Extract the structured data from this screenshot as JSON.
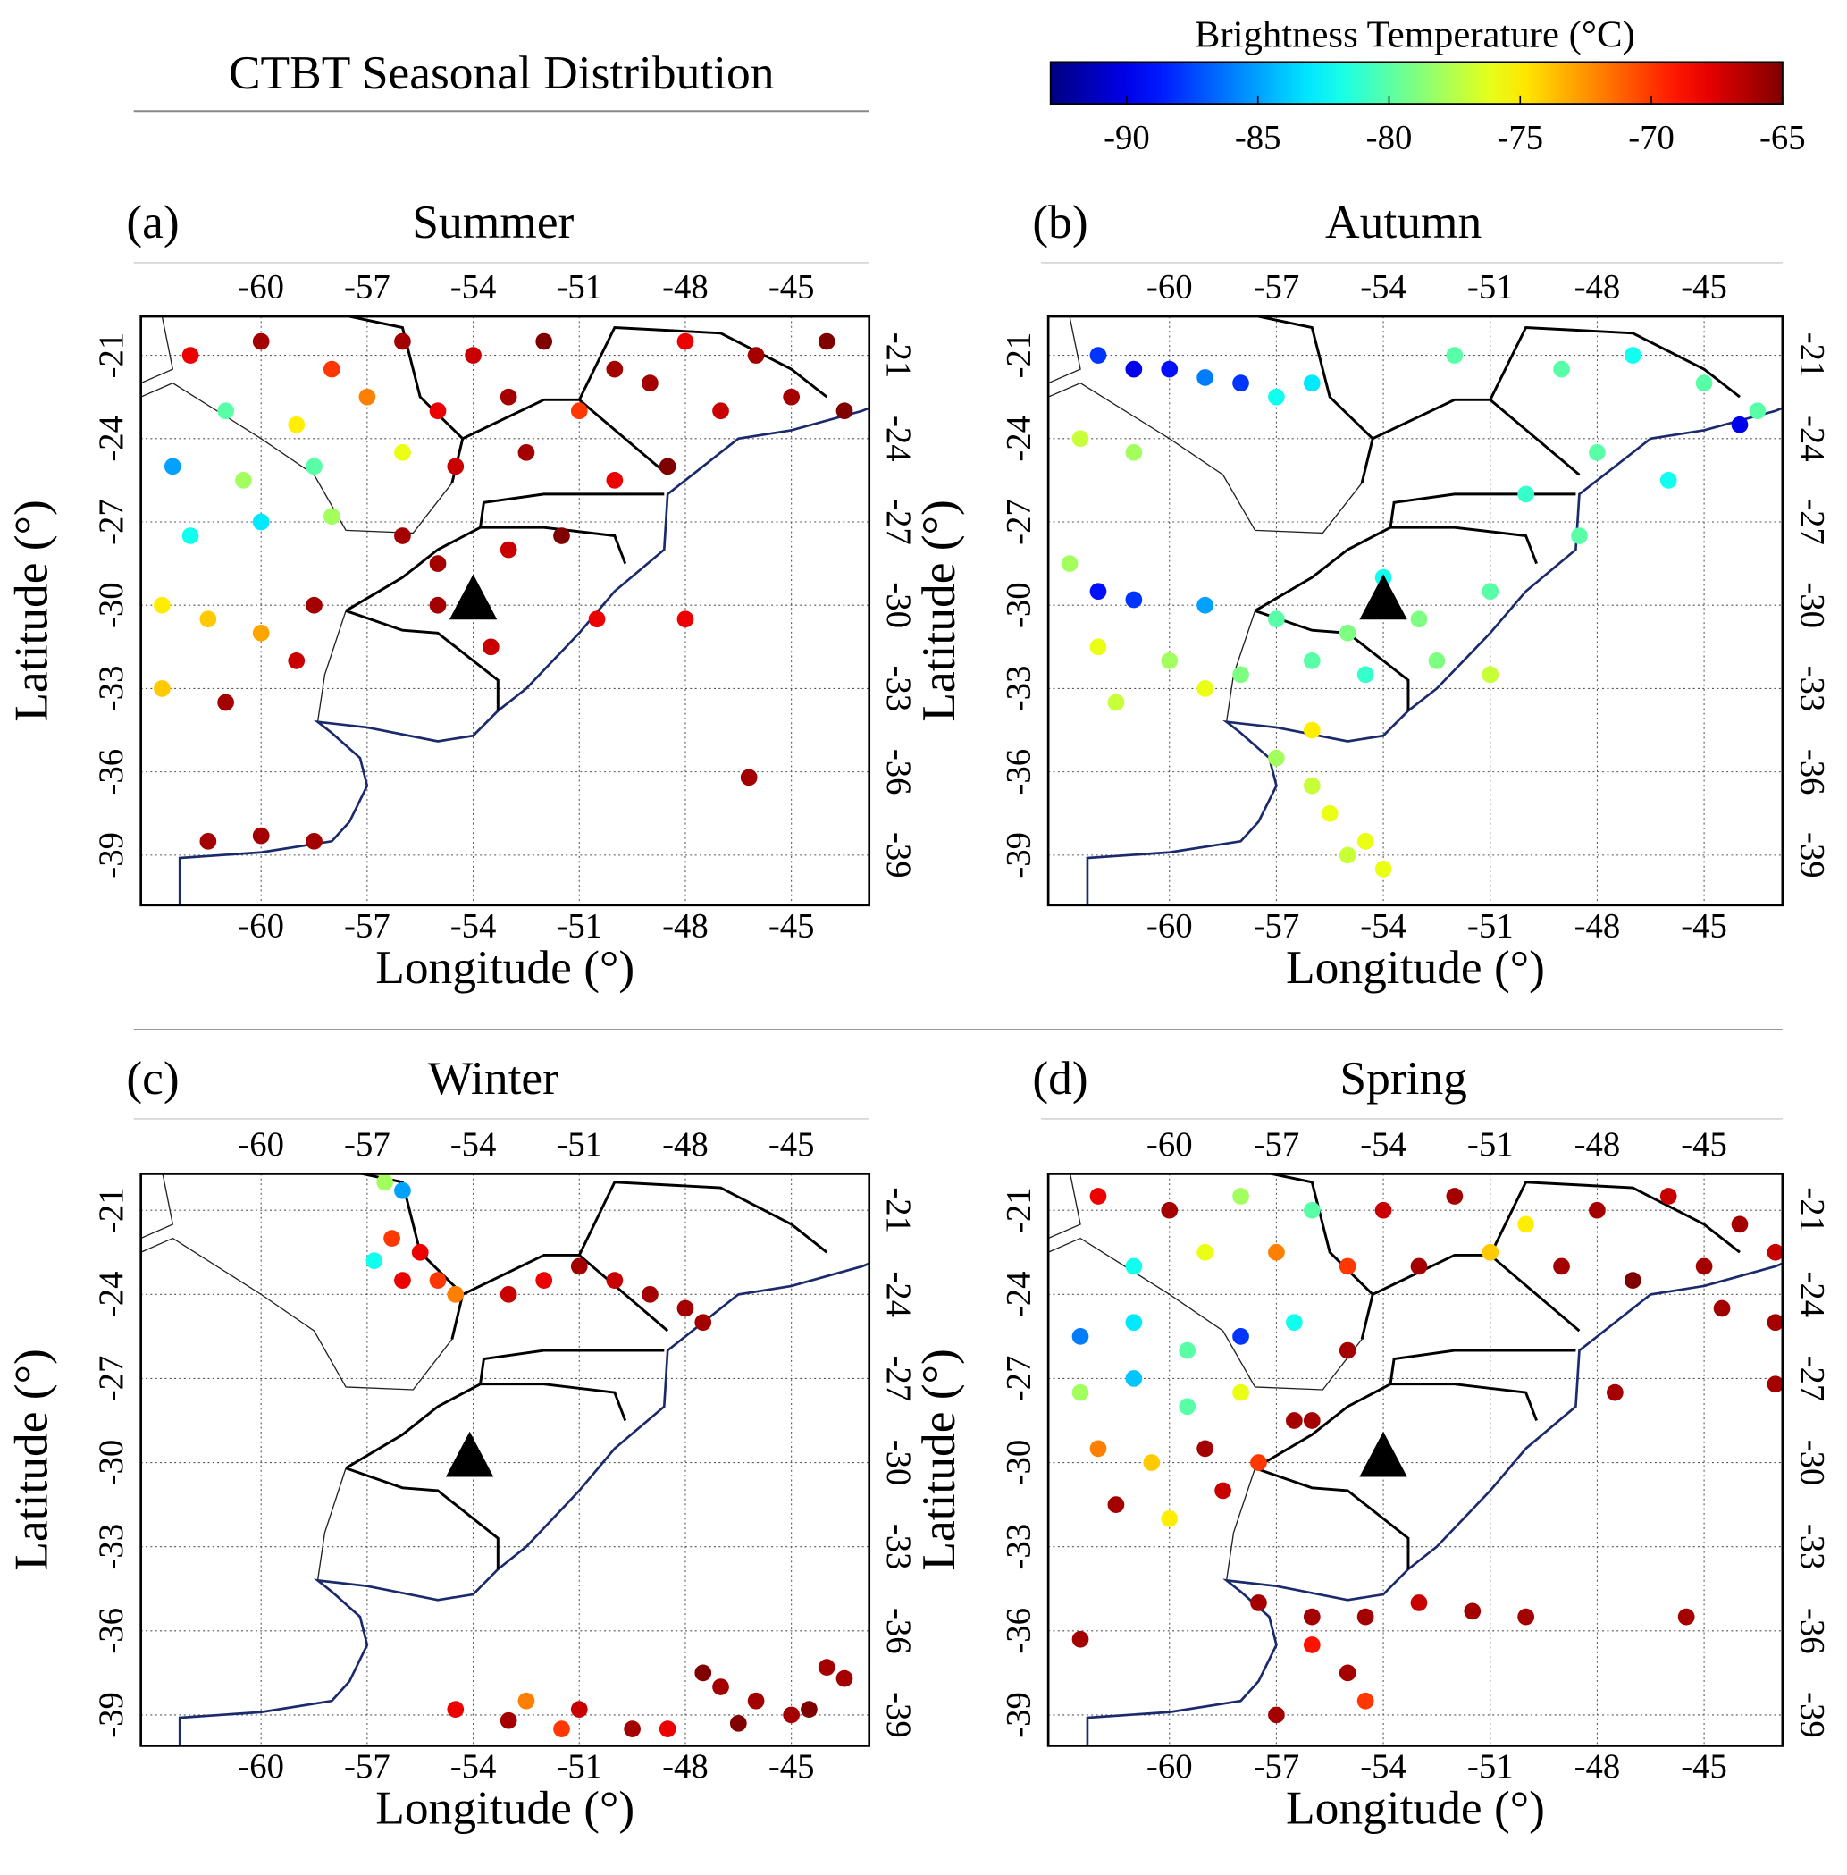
{
  "title": "CTBT Seasonal Distribution",
  "colorbar": {
    "label": "Brightness Temperature (°C)",
    "colormap": "jet",
    "lim": [
      -92.9,
      -65
    ],
    "ticks": [
      -90,
      -85,
      -80,
      -75,
      -70,
      -65
    ]
  },
  "chart_data": [
    {
      "type": "scatter",
      "panel_label": "(a)",
      "title": "Summer",
      "xlabel": "Longitude (°)",
      "ylabel": "Latitude (°)",
      "xlim": [
        -63.4,
        -42.8
      ],
      "ylim": [
        -40.8,
        -19.6
      ],
      "xticks": [
        -60,
        -57,
        -54,
        -51,
        -48,
        -45
      ],
      "yticks": [
        -21,
        -24,
        -27,
        -30,
        -33,
        -36,
        -39
      ],
      "grid": true,
      "x": [
        -62,
        -60,
        -58,
        -56,
        -54,
        -52,
        -50,
        -48,
        -46,
        -44,
        -61,
        -59,
        -57,
        -55,
        -53,
        -51,
        -49,
        -47,
        -45,
        -43.5,
        -62.5,
        -60.5,
        -58.5,
        -56,
        -54.5,
        -52.5,
        -50,
        -48.5,
        -62,
        -60,
        -58,
        -56,
        -55,
        -53,
        -51.5,
        -62.8,
        -61.5,
        -60,
        -58.5,
        -55,
        -53.5,
        -50.5,
        -48,
        -62.8,
        -61,
        -59,
        -61.5,
        -60,
        -58.5,
        -46.2
      ],
      "y": [
        -21,
        -20.5,
        -21.5,
        -20.5,
        -21,
        -20.5,
        -21.5,
        -20.5,
        -21,
        -20.5,
        -23,
        -23.5,
        -22.5,
        -23,
        -22.5,
        -23,
        -22,
        -23,
        -22.5,
        -23,
        -25,
        -25.5,
        -25,
        -24.5,
        -25,
        -24.5,
        -25.5,
        -25,
        -27.5,
        -27,
        -26.8,
        -27.5,
        -28.5,
        -28,
        -27.5,
        -30,
        -30.5,
        -31,
        -30,
        -30,
        -31.5,
        -30.5,
        -30.5,
        -33,
        -33.5,
        -32,
        -38.5,
        -38.3,
        -38.5,
        -36.2
      ],
      "values": [
        -68,
        -66,
        -70,
        -66,
        -67,
        -65,
        -66,
        -68,
        -66,
        -65,
        -80,
        -75,
        -72,
        -68,
        -66,
        -70,
        -66,
        -67,
        -66,
        -65,
        -85,
        -78,
        -80,
        -76,
        -67,
        -66,
        -68,
        -65,
        -82,
        -83,
        -78,
        -66,
        -66,
        -67,
        -65,
        -75,
        -74,
        -73,
        -66,
        -66,
        -67,
        -68,
        -68,
        -74,
        -66,
        -67,
        -66,
        -66,
        -66,
        -66
      ],
      "markers": {
        "x": [
          -54
        ],
        "y": [
          -29.7
        ]
      }
    },
    {
      "type": "scatter",
      "panel_label": "(b)",
      "title": "Autumn",
      "xlabel": "Longitude (°)",
      "ylabel": "Latitude (°)",
      "xlim": [
        -63.4,
        -42.8
      ],
      "ylim": [
        -40.8,
        -19.6
      ],
      "xticks": [
        -60,
        -57,
        -54,
        -51,
        -48,
        -45
      ],
      "yticks": [
        -21,
        -24,
        -27,
        -30,
        -33,
        -36,
        -39
      ],
      "grid": true,
      "x": [
        -62,
        -61,
        -60,
        -59,
        -58,
        -56,
        -52,
        -49,
        -47,
        -45,
        -43.5,
        -62.5,
        -61,
        -57,
        -48,
        -46,
        -44,
        -62.8,
        -62,
        -61,
        -59,
        -57,
        -55,
        -54,
        -53,
        -51,
        -62,
        -60,
        -58,
        -56,
        -54.5,
        -52.5,
        -51,
        -61.5,
        -59,
        -56,
        -57,
        -56,
        -55.5,
        -54.5,
        -55,
        -54,
        -48.5,
        -50
      ],
      "y": [
        -21,
        -21.5,
        -21.5,
        -21.8,
        -22,
        -22,
        -21,
        -21.5,
        -21,
        -22,
        -23,
        -24,
        -24.5,
        -22.5,
        -24.5,
        -25.5,
        -23.5,
        -28.5,
        -29.5,
        -29.8,
        -30,
        -30.5,
        -31,
        -29,
        -30.5,
        -29.5,
        -31.5,
        -32,
        -32.5,
        -32,
        -32.5,
        -32,
        -32.5,
        -33.5,
        -33,
        -34.5,
        -35.5,
        -36.5,
        -37.5,
        -38.5,
        -39,
        -39.5,
        -27.5,
        -26
      ],
      "values": [
        -88,
        -90,
        -89,
        -86,
        -88,
        -83,
        -80,
        -80,
        -82,
        -80,
        -80,
        -77,
        -78,
        -82,
        -80,
        -82,
        -90,
        -78,
        -89,
        -88,
        -85,
        -80,
        -79,
        -82,
        -79,
        -80,
        -76,
        -78,
        -79,
        -80,
        -81,
        -79,
        -77,
        -77,
        -76,
        -75,
        -78,
        -77,
        -76,
        -76,
        -77,
        -76,
        -80,
        -81
      ],
      "markers": {
        "x": [
          -54
        ],
        "y": [
          -29.7
        ]
      }
    },
    {
      "type": "scatter",
      "panel_label": "(c)",
      "title": "Winter",
      "xlabel": "Longitude (°)",
      "ylabel": "Latitude (°)",
      "xlim": [
        -63.4,
        -42.8
      ],
      "ylim": [
        -40.1,
        -19.7
      ],
      "xticks": [
        -60,
        -57,
        -54,
        -51,
        -48,
        -45
      ],
      "yticks": [
        -21,
        -24,
        -27,
        -30,
        -33,
        -36,
        -39
      ],
      "grid": true,
      "x": [
        -56.5,
        -56,
        -56.3,
        -55.5,
        -56.8,
        -56,
        -55,
        -54.5,
        -53,
        -52,
        -51,
        -50,
        -49,
        -48,
        -47.5,
        -54.5,
        -53,
        -52.5,
        -51.5,
        -51,
        -49.5,
        -48.5,
        -47.5,
        -47,
        -46,
        -45,
        -44.5,
        -44,
        -43.5,
        -46.5
      ],
      "y": [
        -20,
        -20.3,
        -22,
        -22.5,
        -22.8,
        -23.5,
        -23.5,
        -24,
        -24,
        -23.5,
        -23,
        -23.5,
        -24,
        -24.5,
        -25,
        -38.8,
        -39.2,
        -38.5,
        -39.5,
        -38.8,
        -39.5,
        -39.5,
        -37.5,
        -38,
        -38.5,
        -39,
        -38.8,
        -37.3,
        -37.7,
        -39.3
      ],
      "values": [
        -78,
        -85,
        -70,
        -68,
        -82,
        -68,
        -70,
        -72,
        -67,
        -68,
        -66,
        -67,
        -66,
        -66,
        -66,
        -68,
        -66,
        -72,
        -70,
        -67,
        -66,
        -68,
        -65,
        -66,
        -66,
        -66,
        -65,
        -66,
        -66,
        -65
      ],
      "markers": {
        "x": [
          -54.1
        ],
        "y": [
          -29.7
        ]
      }
    },
    {
      "type": "scatter",
      "panel_label": "(d)",
      "title": "Spring",
      "xlabel": "Longitude (°)",
      "ylabel": "Latitude (°)",
      "xlim": [
        -63.4,
        -42.8
      ],
      "ylim": [
        -40.1,
        -19.7
      ],
      "xticks": [
        -60,
        -57,
        -54,
        -51,
        -48,
        -45
      ],
      "yticks": [
        -21,
        -24,
        -27,
        -30,
        -33,
        -36,
        -39
      ],
      "grid": true,
      "x": [
        -62,
        -60,
        -58,
        -56,
        -54,
        -52,
        -50,
        -48,
        -46,
        -44,
        -61,
        -59,
        -57,
        -55,
        -53,
        -51,
        -49,
        -47,
        -45,
        -43,
        -62.5,
        -61,
        -59.5,
        -58,
        -56.5,
        -55,
        -62.5,
        -61,
        -59.5,
        -58,
        -56.5,
        -62,
        -60.5,
        -59,
        -57.5,
        -56,
        -61.5,
        -60,
        -58.5,
        -57.5,
        -56,
        -54.5,
        -53,
        -51.5,
        -50,
        -56,
        -55,
        -54.5,
        -57,
        -62.5,
        -44.5,
        -43,
        -43,
        -47.5,
        -45.5
      ],
      "y": [
        -20.5,
        -21,
        -20.5,
        -21,
        -21,
        -20.5,
        -21.5,
        -21,
        -20.5,
        -21.5,
        -23,
        -22.5,
        -22.5,
        -23,
        -23,
        -22.5,
        -23,
        -23.5,
        -23,
        -22.5,
        -25.5,
        -25,
        -26,
        -25.5,
        -25,
        -26,
        -27.5,
        -27,
        -28,
        -27.5,
        -28.5,
        -29.5,
        -30,
        -29.5,
        -30,
        -28.5,
        -31.5,
        -32,
        -31,
        -35,
        -35.5,
        -35.5,
        -35,
        -35.3,
        -35.5,
        -36.5,
        -37.5,
        -38.5,
        -39,
        -36.3,
        -24.5,
        -25,
        -27.2,
        -27.5,
        -35.5
      ],
      "values": [
        -68,
        -66,
        -78,
        -80,
        -67,
        -66,
        -75,
        -66,
        -67,
        -66,
        -82,
        -76,
        -72,
        -70,
        -66,
        -74,
        -66,
        -65,
        -66,
        -67,
        -86,
        -83,
        -80,
        -88,
        -82,
        -66,
        -78,
        -84,
        -80,
        -76,
        -66,
        -72,
        -74,
        -66,
        -70,
        -66,
        -66,
        -75,
        -67,
        -66,
        -66,
        -66,
        -67,
        -66,
        -66,
        -69,
        -66,
        -70,
        -66,
        -66,
        -66,
        -66,
        -66,
        -66,
        -66
      ],
      "markers": {
        "x": [
          -54
        ],
        "y": [
          -29.7
        ]
      }
    }
  ]
}
